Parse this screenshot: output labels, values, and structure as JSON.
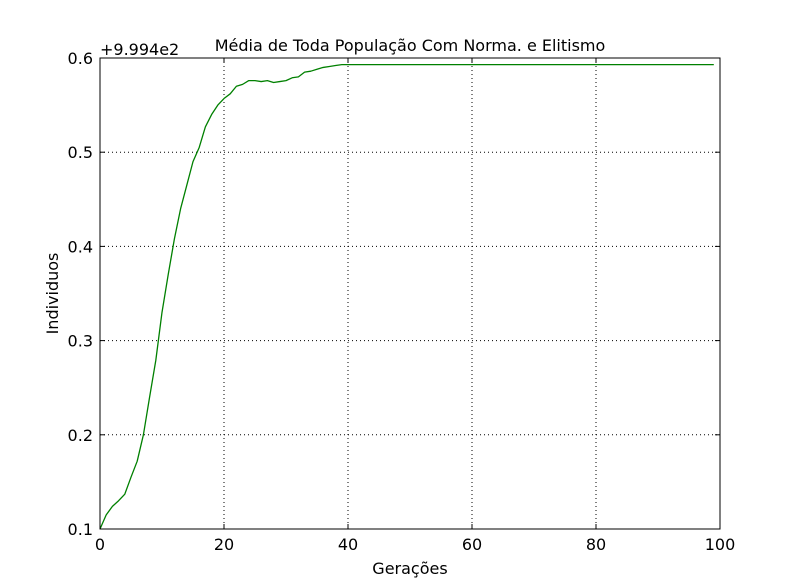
{
  "chart_data": {
    "type": "line",
    "title": "Média de Toda População Com Norma. e Elitismo",
    "xlabel": "Gerações",
    "ylabel": "Individuos",
    "y_offset_label": "+9.994e2",
    "xlim": [
      0,
      100
    ],
    "ylim": [
      0.1,
      0.6
    ],
    "x_ticks": [
      "0",
      "20",
      "40",
      "60",
      "80",
      "100"
    ],
    "y_ticks": [
      "0.1",
      "0.2",
      "0.3",
      "0.4",
      "0.5",
      "0.6"
    ],
    "grid": true,
    "colors": {
      "series": "#008000",
      "axes": "#000000",
      "grid": "#000000"
    },
    "series": [
      {
        "values": [
          [
            0,
            0.1
          ],
          [
            1,
            0.115
          ],
          [
            2,
            0.124
          ],
          [
            3,
            0.13
          ],
          [
            4,
            0.137
          ],
          [
            5,
            0.155
          ],
          [
            6,
            0.172
          ],
          [
            7,
            0.2
          ],
          [
            8,
            0.24
          ],
          [
            9,
            0.279
          ],
          [
            10,
            0.33
          ],
          [
            11,
            0.37
          ],
          [
            12,
            0.408
          ],
          [
            13,
            0.44
          ],
          [
            14,
            0.465
          ],
          [
            15,
            0.49
          ],
          [
            16,
            0.505
          ],
          [
            17,
            0.527
          ],
          [
            18,
            0.54
          ],
          [
            19,
            0.55
          ],
          [
            20,
            0.557
          ],
          [
            21,
            0.562
          ],
          [
            22,
            0.57
          ],
          [
            23,
            0.572
          ],
          [
            24,
            0.576
          ],
          [
            25,
            0.576
          ],
          [
            26,
            0.575
          ],
          [
            27,
            0.576
          ],
          [
            28,
            0.574
          ],
          [
            29,
            0.575
          ],
          [
            30,
            0.576
          ],
          [
            31,
            0.579
          ],
          [
            32,
            0.58
          ],
          [
            33,
            0.585
          ],
          [
            34,
            0.586
          ],
          [
            35,
            0.588
          ],
          [
            36,
            0.59
          ],
          [
            37,
            0.591
          ],
          [
            38,
            0.592
          ],
          [
            39,
            0.593
          ],
          [
            40,
            0.593
          ],
          [
            45,
            0.593
          ],
          [
            50,
            0.593
          ],
          [
            55,
            0.593
          ],
          [
            60,
            0.593
          ],
          [
            65,
            0.593
          ],
          [
            70,
            0.593
          ],
          [
            75,
            0.593
          ],
          [
            80,
            0.593
          ],
          [
            85,
            0.593
          ],
          [
            90,
            0.593
          ],
          [
            95,
            0.593
          ],
          [
            99,
            0.593
          ]
        ]
      }
    ]
  }
}
